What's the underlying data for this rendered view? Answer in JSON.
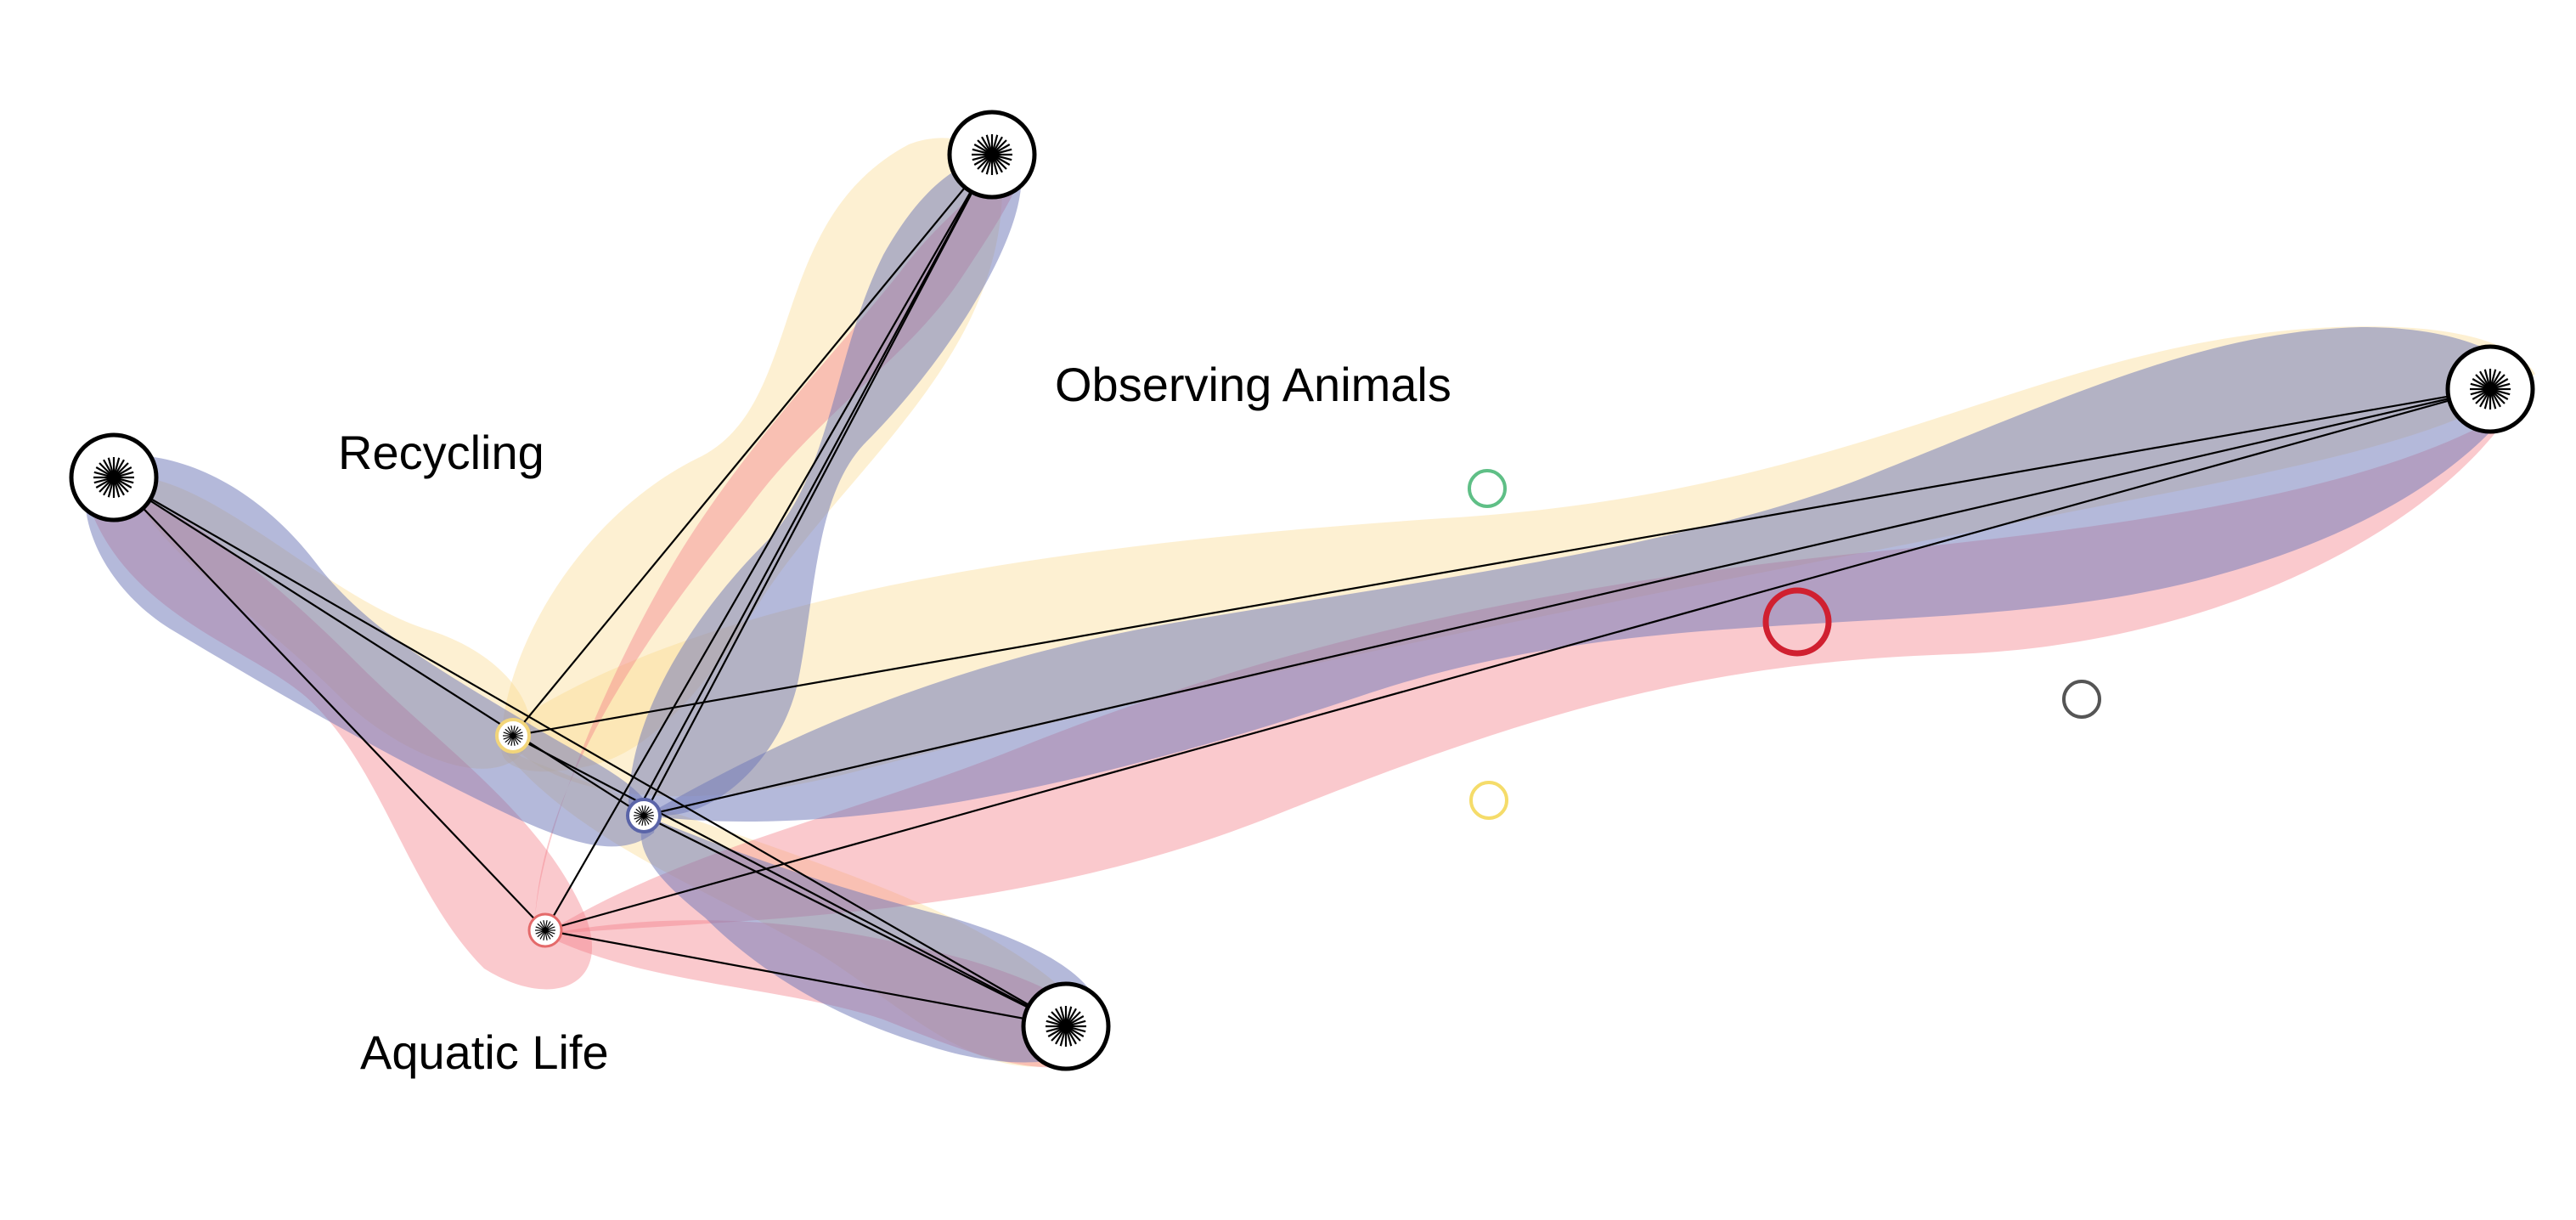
{
  "labels": {
    "recycling": "Recycling",
    "observing_animals": "Observing Animals",
    "aquatic_life": "Aquatic Life"
  },
  "nodes": [
    {
      "id": "topic-left",
      "kind": "topic"
    },
    {
      "id": "topic-top",
      "kind": "topic"
    },
    {
      "id": "topic-right",
      "kind": "topic"
    },
    {
      "id": "topic-bottom",
      "kind": "topic"
    },
    {
      "id": "hub-yellow",
      "kind": "hub",
      "color": "#f2d57a"
    },
    {
      "id": "hub-blue",
      "kind": "hub",
      "color": "#5a64a8"
    },
    {
      "id": "hub-red",
      "kind": "hub",
      "color": "#e46a6a"
    }
  ],
  "edges": [
    [
      "topic-left",
      "hub-blue"
    ],
    [
      "topic-left",
      "hub-red"
    ],
    [
      "topic-left",
      "topic-bottom"
    ],
    [
      "topic-top",
      "hub-yellow"
    ],
    [
      "topic-top",
      "hub-blue"
    ],
    [
      "topic-top",
      "hub-red"
    ],
    [
      "topic-right",
      "hub-yellow"
    ],
    [
      "topic-right",
      "hub-blue"
    ],
    [
      "topic-right",
      "hub-red"
    ],
    [
      "hub-yellow",
      "topic-bottom"
    ],
    [
      "hub-red",
      "topic-bottom"
    ],
    [
      "hub-blue",
      "topic-bottom"
    ]
  ],
  "legend_markers": [
    {
      "id": "green",
      "color": "#5fbf86"
    },
    {
      "id": "red",
      "color": "#d02030"
    },
    {
      "id": "gray",
      "color": "#555555"
    },
    {
      "id": "yellow",
      "color": "#f5dc6a"
    }
  ],
  "band_colors": {
    "yellow": "#f9d889",
    "blue": "#6f79b8",
    "red": "#f47f89"
  }
}
